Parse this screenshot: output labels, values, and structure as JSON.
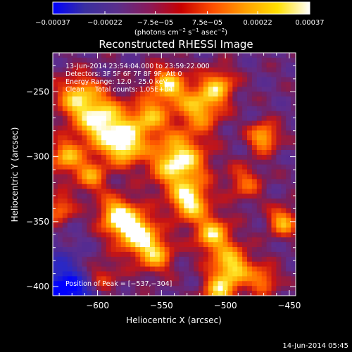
{
  "chart_data": {
    "type": "heatmap",
    "title": "Reconstructed RHESSI Image",
    "xlabel": "Heliocentric X (arcsec)",
    "ylabel": "Heliocentric Y (arcsec)",
    "xlim": [
      -635,
      -445
    ],
    "ylim": [
      -407,
      -220
    ],
    "x_ticks": [
      -600,
      -550,
      -500,
      -450
    ],
    "y_ticks": [
      -250,
      -300,
      -350,
      -400
    ],
    "x_tick_labels": [
      "−600",
      "−550",
      "−500",
      "−450"
    ],
    "y_tick_labels": [
      "−250",
      "−300",
      "−350",
      "−400"
    ],
    "colorbar": {
      "range": [
        -0.00037,
        0.00037
      ],
      "tick_values": [
        -0.00037,
        -0.00022,
        -7.5e-05,
        7.5e-05,
        0.00022,
        0.00037
      ],
      "tick_labels": [
        "−0.00037",
        "−0.00022",
        "−7.5e−05",
        "7.5e−05",
        "0.00022",
        "0.00037"
      ],
      "unit_parts": {
        "open": "(photons cm",
        "exp1": "−2",
        "mid1": " s",
        "exp2": "−1",
        "mid2": " asec",
        "exp3": "−2",
        "close": ")"
      },
      "colors": [
        "#0000ff",
        "#3a2fa0",
        "#5a2f8c",
        "#8a1a5a",
        "#c80000",
        "#ff5000",
        "#ffa000",
        "#ffe000",
        "#ffffff"
      ]
    },
    "annotations": [
      "13-Jun-2014 23:54:04.000 to 23:59:22.000",
      "Detectors: 3F 5F 6F 7F 8F 9F, Att 0",
      "Energy Range: 12.0 - 25.0 keV",
      "Clean     Total counts: 1.05E+04"
    ],
    "peak_label": "Position of Peak = [−537,−304]",
    "peak": [
      -537,
      -304
    ],
    "grid": false,
    "colormap_note": "blue-purple-red-yellow-white",
    "sources": [
      {
        "x": -615,
        "y": -255,
        "strength": 0.75,
        "sigma": 12
      },
      {
        "x": -595,
        "y": -275,
        "strength": 0.95,
        "sigma": 14
      },
      {
        "x": -578,
        "y": -292,
        "strength": 0.85,
        "sigma": 10
      },
      {
        "x": -560,
        "y": -270,
        "strength": 0.7,
        "sigma": 10
      },
      {
        "x": -545,
        "y": -245,
        "strength": 0.8,
        "sigma": 10
      },
      {
        "x": -537,
        "y": -304,
        "strength": 1.0,
        "sigma": 15
      },
      {
        "x": -520,
        "y": -262,
        "strength": 0.75,
        "sigma": 12
      },
      {
        "x": -505,
        "y": -245,
        "strength": 0.65,
        "sigma": 9
      },
      {
        "x": -528,
        "y": -335,
        "strength": 0.9,
        "sigma": 10
      },
      {
        "x": -510,
        "y": -360,
        "strength": 0.8,
        "sigma": 10
      },
      {
        "x": -495,
        "y": -385,
        "strength": 0.85,
        "sigma": 11
      },
      {
        "x": -505,
        "y": -405,
        "strength": 0.7,
        "sigma": 9
      },
      {
        "x": -585,
        "y": -345,
        "strength": 0.85,
        "sigma": 10
      },
      {
        "x": -570,
        "y": -358,
        "strength": 0.95,
        "sigma": 11
      },
      {
        "x": -555,
        "y": -375,
        "strength": 0.7,
        "sigma": 10
      },
      {
        "x": -625,
        "y": -300,
        "strength": 0.7,
        "sigma": 9
      },
      {
        "x": -605,
        "y": -315,
        "strength": 0.6,
        "sigma": 9
      },
      {
        "x": -470,
        "y": -285,
        "strength": 0.75,
        "sigma": 8
      },
      {
        "x": -455,
        "y": -350,
        "strength": 0.7,
        "sigma": 8
      },
      {
        "x": -470,
        "y": -395,
        "strength": 0.55,
        "sigma": 8
      },
      {
        "x": -600,
        "y": -395,
        "strength": 0.6,
        "sigma": 11
      },
      {
        "x": -630,
        "y": -340,
        "strength": 0.55,
        "sigma": 8
      },
      {
        "x": -485,
        "y": -320,
        "strength": 0.45,
        "sigma": 10
      }
    ],
    "negative_regions": [
      {
        "x": -632,
        "y": -400,
        "strength": 1.0,
        "sigma": 18
      },
      {
        "x": -610,
        "y": -405,
        "strength": 0.7,
        "sigma": 12
      }
    ]
  },
  "footer_timestamp": "14-Jun-2014 05:45"
}
